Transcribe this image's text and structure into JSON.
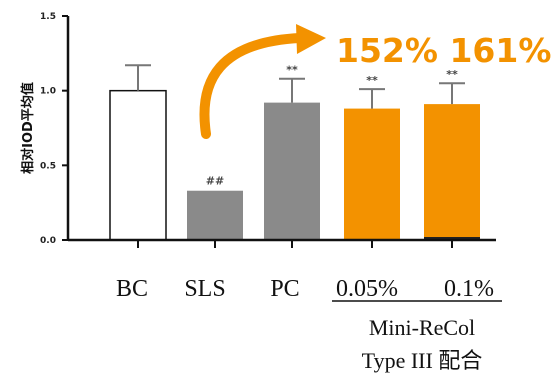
{
  "chart_data": {
    "type": "bar",
    "ylabel": "相对IOD平均值",
    "ylim": [
      0,
      1.5
    ],
    "yticks": [
      "0.0",
      "0.5",
      "1.0",
      "1.5"
    ],
    "categories": [
      "BC",
      "SLS",
      "PC",
      "0.05%",
      "0.1%"
    ],
    "values": [
      1.0,
      0.33,
      0.92,
      0.88,
      0.91
    ],
    "errors": [
      0.17,
      0.0,
      0.16,
      0.13,
      0.14
    ],
    "significance": [
      "",
      "##",
      "**",
      "**",
      "**"
    ],
    "bar_colors": [
      "#ffffff",
      "#8a8a8a",
      "#8a8a8a",
      "#F39200",
      "#F39200"
    ],
    "group_caption": [
      "Mini-ReCol",
      "Type III 配合"
    ],
    "callout": "152% 161%",
    "grid": false,
    "colors": {
      "accent": "#F39200",
      "gray": "#8a8a8a",
      "axis": "#111111"
    }
  }
}
